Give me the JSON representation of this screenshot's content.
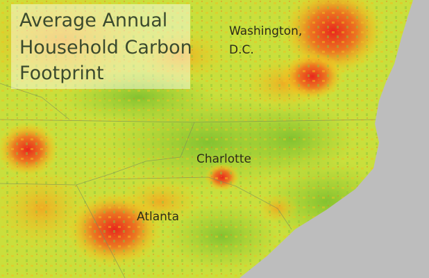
{
  "title": {
    "lines": [
      "Average Annual",
      "Household Carbon",
      "Footprint"
    ]
  },
  "cities": [
    {
      "lines": [
        "Washington,",
        "D.C."
      ]
    },
    {
      "lines": [
        "Charlotte"
      ]
    },
    {
      "lines": [
        "Atlanta"
      ]
    }
  ]
}
